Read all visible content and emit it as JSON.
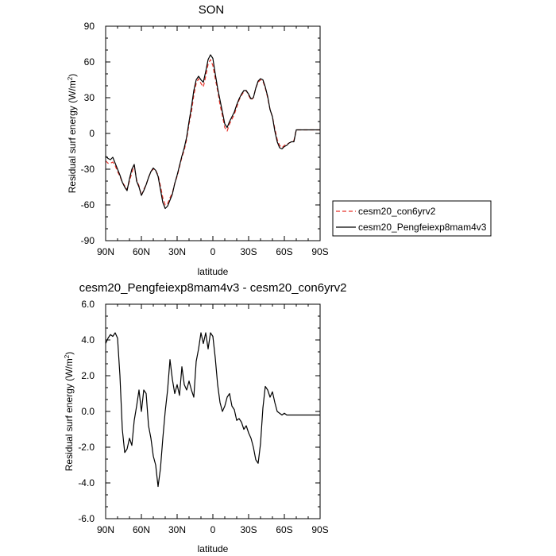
{
  "chart_data": [
    {
      "type": "line",
      "title": "SON",
      "xlabel": "latitude",
      "ylabel": "Residual surf energy (W/m²)",
      "ylabel_main": "Residual surf energy (W/m",
      "ylabel_sup": "2",
      "ylabel_close": ")",
      "xlim": [
        90,
        -90
      ],
      "ylim": [
        -90,
        90
      ],
      "xticks": [
        90,
        60,
        30,
        0,
        -30,
        -60,
        -90
      ],
      "xtick_labels": [
        "90N",
        "60N",
        "30N",
        "0",
        "30S",
        "60S",
        "90S"
      ],
      "yticks": [
        -90,
        -60,
        -30,
        0,
        30,
        60,
        90
      ],
      "ytick_labels": [
        "-90",
        "-60",
        "-30",
        "0",
        "30",
        "60",
        "90"
      ],
      "legend_position": "right, outside plot",
      "series": [
        {
          "name": "cesm20_con6yrv2",
          "color": "#e8332a",
          "style": "dashed",
          "x": [
            90,
            88,
            86,
            84,
            82,
            80,
            78,
            76,
            74,
            72,
            70,
            68,
            66,
            64,
            62,
            60,
            58,
            56,
            54,
            52,
            50,
            48,
            46,
            44,
            42,
            40,
            38,
            36,
            34,
            32,
            30,
            28,
            26,
            24,
            22,
            20,
            18,
            16,
            14,
            12,
            10,
            8,
            6,
            4,
            2,
            0,
            -2,
            -4,
            -6,
            -8,
            -10,
            -12,
            -14,
            -16,
            -18,
            -20,
            -22,
            -24,
            -26,
            -28,
            -30,
            -32,
            -34,
            -36,
            -38,
            -40,
            -42,
            -44,
            -46,
            -48,
            -50,
            -52,
            -54,
            -56,
            -58,
            -60,
            -62,
            -64,
            -66,
            -68,
            -70,
            -72,
            -74,
            -76,
            -78,
            -80,
            -82,
            -84,
            -86,
            -88,
            -90
          ],
          "values": [
            -23,
            -25,
            -25,
            -24,
            -27,
            -32,
            -36,
            -41,
            -44,
            -47,
            -40,
            -33,
            -27,
            -39,
            -44,
            -52,
            -47,
            -43,
            -37,
            -32,
            -30,
            -31,
            -35,
            -44,
            -54,
            -60,
            -59,
            -54,
            -50,
            -42,
            -36,
            -28,
            -20,
            -14,
            -5,
            8,
            18,
            32,
            42,
            46,
            42,
            39,
            48,
            58,
            62,
            57,
            46,
            36,
            24,
            15,
            5,
            2,
            8,
            12,
            16,
            22,
            28,
            32,
            35,
            36,
            32,
            28,
            30,
            38,
            43,
            45,
            44,
            38,
            30,
            20,
            14,
            4,
            -5,
            -10,
            -12,
            -10,
            -9,
            -8,
            -7,
            -6,
            3,
            3,
            3,
            3,
            3,
            3,
            3,
            3,
            3,
            3,
            3
          ]
        },
        {
          "name": "cesm20_Pengfeiexp8mam4v3",
          "color": "#000000",
          "style": "solid",
          "x": [
            90,
            88,
            86,
            84,
            82,
            80,
            78,
            76,
            74,
            72,
            70,
            68,
            66,
            64,
            62,
            60,
            58,
            56,
            54,
            52,
            50,
            48,
            46,
            44,
            42,
            40,
            38,
            36,
            34,
            32,
            30,
            28,
            26,
            24,
            22,
            20,
            18,
            16,
            14,
            12,
            10,
            8,
            6,
            4,
            2,
            0,
            -2,
            -4,
            -6,
            -8,
            -10,
            -12,
            -14,
            -16,
            -18,
            -20,
            -22,
            -24,
            -26,
            -28,
            -30,
            -32,
            -34,
            -36,
            -38,
            -40,
            -42,
            -44,
            -46,
            -48,
            -50,
            -52,
            -54,
            -56,
            -58,
            -60,
            -62,
            -64,
            -66,
            -68,
            -70,
            -72,
            -74,
            -76,
            -78,
            -80,
            -82,
            -84,
            -86,
            -88,
            -90
          ],
          "values": [
            -19,
            -21,
            -22,
            -20,
            -25,
            -30,
            -35,
            -41,
            -45,
            -48,
            -38,
            -30,
            -26,
            -40,
            -45,
            -52,
            -48,
            -43,
            -37,
            -32,
            -29,
            -31,
            -36,
            -47,
            -58,
            -63,
            -61,
            -56,
            -51,
            -42,
            -35,
            -27,
            -19,
            -12,
            -3,
            10,
            22,
            36,
            45,
            48,
            45,
            43,
            52,
            62,
            66,
            63,
            50,
            38,
            28,
            18,
            8,
            5,
            10,
            14,
            18,
            24,
            29,
            33,
            36,
            36,
            33,
            29,
            30,
            38,
            44,
            46,
            45,
            39,
            31,
            20,
            14,
            2,
            -7,
            -12,
            -13,
            -11,
            -10,
            -8,
            -7,
            -7,
            3,
            3,
            3,
            3,
            3,
            3,
            3,
            3,
            3,
            3,
            3
          ]
        }
      ]
    },
    {
      "type": "line",
      "title": "cesm20_Pengfeiexp8mam4v3 - cesm20_con6yrv2",
      "xlabel": "latitude",
      "ylabel": "Residual surf energy (W/m²)",
      "ylabel_main": "Residual surf energy (W/m",
      "ylabel_sup": "2",
      "ylabel_close": ")",
      "xlim": [
        90,
        -90
      ],
      "ylim": [
        -6,
        6
      ],
      "xticks": [
        90,
        60,
        30,
        0,
        -30,
        -60,
        -90
      ],
      "xtick_labels": [
        "90N",
        "60N",
        "30N",
        "0",
        "30S",
        "60S",
        "90S"
      ],
      "yticks": [
        -6,
        -4,
        -2,
        0,
        2,
        4,
        6
      ],
      "ytick_labels": [
        "-6.0",
        "-4.0",
        "-2.0",
        "0.0",
        "2.0",
        "4.0",
        "6.0"
      ],
      "series": [
        {
          "color": "#000000",
          "style": "solid",
          "x": [
            90,
            88,
            86,
            84,
            82,
            80,
            78,
            76,
            74,
            72,
            70,
            68,
            66,
            64,
            62,
            60,
            58,
            56,
            54,
            52,
            50,
            48,
            46,
            44,
            42,
            40,
            38,
            36,
            34,
            32,
            30,
            28,
            26,
            24,
            22,
            20,
            18,
            16,
            14,
            12,
            10,
            8,
            6,
            4,
            2,
            0,
            -2,
            -4,
            -6,
            -8,
            -10,
            -12,
            -14,
            -16,
            -18,
            -20,
            -22,
            -24,
            -26,
            -28,
            -30,
            -32,
            -34,
            -36,
            -38,
            -40,
            -42,
            -44,
            -46,
            -48,
            -50,
            -52,
            -54,
            -56,
            -58,
            -60,
            -62,
            -64,
            -66,
            -68,
            -70,
            -72,
            -74,
            -76,
            -78,
            -80,
            -82,
            -84,
            -86,
            -88,
            -90
          ],
          "values": [
            3.8,
            4.1,
            4.3,
            4.2,
            4.4,
            4.1,
            2.0,
            -1.0,
            -2.3,
            -2.1,
            -1.5,
            -1.9,
            -0.5,
            0.3,
            1.2,
            0.0,
            1.2,
            1.0,
            -0.8,
            -1.5,
            -2.5,
            -3.0,
            -4.2,
            -3.2,
            -1.5,
            0.0,
            1.2,
            2.9,
            1.8,
            1.0,
            1.5,
            0.9,
            2.5,
            1.5,
            1.2,
            1.7,
            1.2,
            0.8,
            2.8,
            3.5,
            4.4,
            3.8,
            4.4,
            3.5,
            4.4,
            4.2,
            3.0,
            1.5,
            0.5,
            0.0,
            0.3,
            0.8,
            1.0,
            0.3,
            0.1,
            -0.5,
            -0.4,
            -0.6,
            -1.0,
            -0.8,
            -1.2,
            -1.5,
            -2.0,
            -2.7,
            -2.9,
            -1.8,
            0.2,
            1.4,
            1.2,
            0.8,
            1.1,
            0.5,
            0.0,
            -0.1,
            -0.2,
            -0.1,
            -0.2,
            -0.2,
            -0.2,
            -0.2,
            -0.2,
            -0.2,
            -0.2,
            -0.2,
            -0.2,
            -0.2,
            -0.2,
            -0.2,
            -0.2,
            -0.2,
            -0.2
          ]
        }
      ]
    }
  ]
}
